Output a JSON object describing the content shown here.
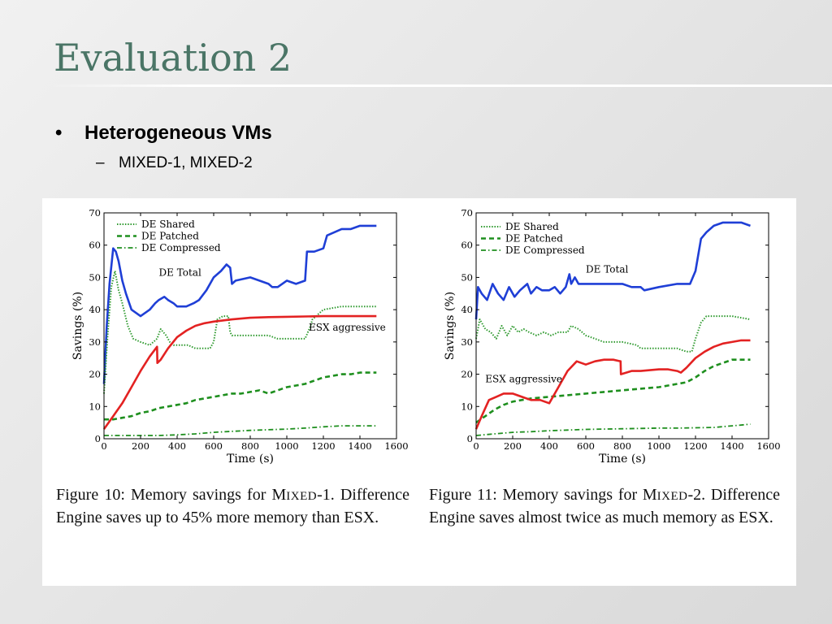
{
  "slide": {
    "title": "Evaluation 2",
    "bullet": "Heterogeneous VMs",
    "subbullet": "MIXED-1, MIXED-2"
  },
  "captions": [
    {
      "pre": "Figure 10: Memory savings for M",
      "sc": "IXED",
      "post": "-1. Difference Engine saves up to 45% more memory than ESX."
    },
    {
      "pre": "Figure 11: Memory savings for M",
      "sc": "IXED",
      "post": "-2. Difference Engine saves almost twice as much memory as ESX."
    }
  ],
  "chart_data": [
    {
      "type": "line",
      "title": "",
      "xlabel": "Time (s)",
      "ylabel": "Savings (%)",
      "xlim": [
        0,
        1600
      ],
      "ylim": [
        0,
        70
      ],
      "xticks": [
        0,
        200,
        400,
        600,
        800,
        1000,
        1200,
        1400,
        1600
      ],
      "yticks": [
        0,
        10,
        20,
        30,
        40,
        50,
        60,
        70
      ],
      "grid": false,
      "legend": {
        "placement": "top-left",
        "entries": [
          "DE Shared",
          "DE Patched",
          "DE Compressed"
        ]
      },
      "annotations": [
        {
          "text": "DE Total",
          "x": 300,
          "y": 50.5
        },
        {
          "text": "ESX aggressive",
          "x": 1120,
          "y": 33.5
        }
      ],
      "series": [
        {
          "name": "DE Total",
          "style": "solid",
          "color": "#1f3fd6",
          "x": [
            0,
            15,
            30,
            50,
            65,
            80,
            100,
            120,
            150,
            200,
            250,
            280,
            300,
            330,
            350,
            380,
            400,
            450,
            490,
            520,
            560,
            600,
            640,
            670,
            690,
            700,
            720,
            800,
            850,
            900,
            920,
            950,
            1000,
            1050,
            1100,
            1110,
            1150,
            1200,
            1220,
            1300,
            1350,
            1400,
            1450,
            1490
          ],
          "y": [
            17,
            35,
            48,
            59,
            58,
            55,
            49,
            45,
            40,
            38,
            40,
            42,
            43,
            44,
            43,
            42,
            41,
            41,
            42,
            43,
            46,
            50,
            52,
            54,
            53,
            48,
            49,
            50,
            49,
            48,
            47,
            47,
            49,
            48,
            49,
            58,
            58,
            59,
            63,
            65,
            65,
            66,
            66,
            66
          ]
        },
        {
          "name": "DE Shared",
          "style": "dotted",
          "color": "#2f9a2f",
          "x": [
            0,
            20,
            40,
            60,
            80,
            100,
            130,
            160,
            200,
            250,
            290,
            310,
            340,
            360,
            380,
            420,
            460,
            500,
            550,
            580,
            600,
            620,
            650,
            680,
            690,
            700,
            750,
            800,
            850,
            900,
            950,
            1000,
            1050,
            1100,
            1130,
            1140,
            1200,
            1300,
            1400,
            1490
          ],
          "y": [
            14,
            32,
            47,
            52,
            46,
            42,
            35,
            31,
            30,
            29,
            31,
            34,
            32,
            30,
            29,
            29,
            29,
            28,
            28,
            28,
            30,
            37,
            38,
            38,
            33,
            32,
            32,
            32,
            32,
            32,
            31,
            31,
            31,
            31,
            35,
            37,
            40,
            41,
            41,
            41
          ]
        },
        {
          "name": "DE Patched",
          "style": "dashed",
          "color": "#1e8f1e",
          "x": [
            0,
            50,
            100,
            150,
            200,
            250,
            300,
            350,
            400,
            450,
            500,
            550,
            600,
            650,
            700,
            750,
            800,
            850,
            900,
            950,
            1000,
            1050,
            1100,
            1150,
            1200,
            1250,
            1300,
            1350,
            1400,
            1450,
            1490
          ],
          "y": [
            6,
            6,
            6.5,
            7,
            8,
            8.5,
            9.5,
            10,
            10.5,
            11,
            12,
            12.5,
            13,
            13.5,
            14,
            14,
            14.5,
            15,
            14,
            15,
            16,
            16.5,
            17,
            18,
            19,
            19.5,
            20,
            20,
            20.5,
            20.5,
            20.5
          ]
        },
        {
          "name": "DE Compressed",
          "style": "dashdot",
          "color": "#1e8f1e",
          "x": [
            0,
            100,
            200,
            300,
            400,
            500,
            600,
            700,
            800,
            900,
            1000,
            1100,
            1200,
            1300,
            1400,
            1490
          ],
          "y": [
            1,
            1,
            1,
            1,
            1.2,
            1.5,
            2,
            2.3,
            2.6,
            2.8,
            3,
            3.3,
            3.7,
            4,
            4,
            4
          ]
        },
        {
          "name": "ESX aggressive",
          "style": "solid",
          "color": "#e32222",
          "x": [
            0,
            50,
            100,
            150,
            200,
            250,
            290,
            292,
            310,
            350,
            400,
            450,
            500,
            550,
            600,
            700,
            800,
            900,
            1000,
            1100,
            1200,
            1300,
            1400,
            1490
          ],
          "y": [
            3,
            7,
            11,
            16,
            21,
            25.5,
            28.5,
            23.5,
            24.5,
            28,
            31.5,
            33.5,
            35,
            35.8,
            36.3,
            37,
            37.5,
            37.7,
            37.8,
            37.9,
            38,
            38,
            38,
            38
          ]
        }
      ]
    },
    {
      "type": "line",
      "title": "",
      "xlabel": "Time (s)",
      "ylabel": "Savings (%)",
      "xlim": [
        0,
        1600
      ],
      "ylim": [
        0,
        70
      ],
      "xticks": [
        0,
        200,
        400,
        600,
        800,
        1000,
        1200,
        1400,
        1600
      ],
      "yticks": [
        0,
        10,
        20,
        30,
        40,
        50,
        60,
        70
      ],
      "grid": false,
      "legend": {
        "placement": "top-left",
        "entries": [
          "DE Shared",
          "DE Patched",
          "DE Compressed"
        ]
      },
      "annotations": [
        {
          "text": "DE Total",
          "x": 600,
          "y": 51.5
        },
        {
          "text": "ESX aggressive",
          "x": 50,
          "y": 17.5
        }
      ],
      "series": [
        {
          "name": "DE Total",
          "style": "solid",
          "color": "#1f3fd6",
          "x": [
            0,
            10,
            30,
            60,
            90,
            120,
            150,
            180,
            210,
            240,
            280,
            300,
            330,
            360,
            400,
            430,
            460,
            490,
            510,
            520,
            540,
            560,
            600,
            700,
            800,
            850,
            900,
            920,
            1000,
            1100,
            1150,
            1170,
            1200,
            1230,
            1260,
            1300,
            1350,
            1400,
            1450,
            1500
          ],
          "y": [
            37,
            47,
            45,
            43,
            48,
            45,
            43,
            47,
            44,
            46,
            48,
            45,
            47,
            46,
            46,
            47,
            45,
            47,
            51,
            48,
            50,
            48,
            48,
            48,
            48,
            47,
            47,
            46,
            47,
            48,
            48,
            48,
            52,
            62,
            64,
            66,
            67,
            67,
            67,
            66
          ]
        },
        {
          "name": "DE Shared",
          "style": "dotted",
          "color": "#2f9a2f",
          "x": [
            0,
            20,
            50,
            80,
            110,
            140,
            170,
            200,
            230,
            260,
            290,
            330,
            370,
            410,
            450,
            500,
            520,
            560,
            600,
            650,
            700,
            750,
            800,
            880,
            900,
            1000,
            1100,
            1150,
            1180,
            1200,
            1230,
            1260,
            1300,
            1400,
            1500
          ],
          "y": [
            31,
            37,
            34,
            33,
            31,
            35,
            32,
            35,
            33,
            34,
            33,
            32,
            33,
            32,
            33,
            33,
            35,
            34,
            32,
            31,
            30,
            30,
            30,
            29,
            28,
            28,
            28,
            27,
            27,
            31,
            36,
            38,
            38,
            38,
            37
          ]
        },
        {
          "name": "DE Patched",
          "style": "dashed",
          "color": "#1e8f1e",
          "x": [
            0,
            50,
            100,
            150,
            200,
            250,
            300,
            400,
            500,
            600,
            700,
            800,
            900,
            1000,
            1050,
            1100,
            1150,
            1200,
            1250,
            1300,
            1350,
            1400,
            1450,
            1500
          ],
          "y": [
            5,
            7,
            9,
            10.5,
            11.5,
            12,
            12.5,
            13,
            13.5,
            14,
            14.5,
            15,
            15.5,
            16,
            16.5,
            17,
            17.5,
            19,
            21,
            22.5,
            23.5,
            24.5,
            24.5,
            24.5
          ]
        },
        {
          "name": "DE Compressed",
          "style": "dashdot",
          "color": "#1e8f1e",
          "x": [
            0,
            100,
            200,
            300,
            400,
            500,
            600,
            700,
            800,
            900,
            1000,
            1100,
            1200,
            1300,
            1400,
            1500
          ],
          "y": [
            1,
            1.5,
            2,
            2.2,
            2.5,
            2.7,
            2.9,
            3,
            3.1,
            3.2,
            3.3,
            3.3,
            3.4,
            3.5,
            4,
            4.5
          ]
        },
        {
          "name": "ESX aggressive",
          "style": "solid",
          "color": "#e32222",
          "x": [
            0,
            30,
            70,
            110,
            150,
            200,
            250,
            300,
            350,
            400,
            450,
            500,
            550,
            600,
            650,
            700,
            750,
            790,
            792,
            850,
            900,
            1000,
            1050,
            1100,
            1120,
            1150,
            1200,
            1250,
            1300,
            1350,
            1400,
            1450,
            1500
          ],
          "y": [
            3,
            7,
            12,
            13,
            14,
            14,
            13,
            12,
            12,
            11,
            16,
            21,
            24,
            23,
            24,
            24.5,
            24.5,
            24,
            20,
            21,
            21,
            21.5,
            21.5,
            21,
            20.5,
            22,
            25,
            27,
            28.5,
            29.5,
            30,
            30.5,
            30.5
          ]
        }
      ]
    }
  ]
}
